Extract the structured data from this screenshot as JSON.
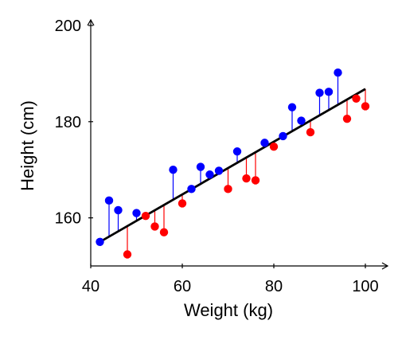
{
  "chart_data": {
    "type": "scatter",
    "title": "",
    "xlabel": "Weight (kg)",
    "ylabel": "Height (cm)",
    "xlim": [
      40,
      100
    ],
    "ylim": [
      150,
      200
    ],
    "x_ticks": [
      40,
      60,
      80,
      100
    ],
    "y_ticks": [
      160,
      180,
      200
    ],
    "grid": false,
    "fit_line": {
      "x": [
        42,
        100
      ],
      "y": [
        155.0,
        186.8
      ],
      "color": "#000000"
    },
    "colors": {
      "above": "#0000ff",
      "below": "#ff0000",
      "line": "#000000"
    },
    "series": [
      {
        "x": [
          44,
          46,
          50,
          58,
          64,
          66,
          68,
          72,
          78,
          84,
          86,
          90,
          92,
          94
        ],
        "y": [
          163.6,
          161.6,
          161.0,
          170.0,
          170.6,
          169.0,
          169.8,
          173.8,
          175.6,
          183.0,
          180.2,
          186.0,
          186.2,
          190.2
        ]
      },
      {
        "x": [
          42,
          48,
          52,
          54,
          56,
          60,
          62,
          70,
          74,
          76,
          80,
          82,
          88,
          96,
          98,
          100
        ],
        "y": [
          155.0,
          152.4,
          160.4,
          158.2,
          157.0,
          163.0,
          166.0,
          166.0,
          168.2,
          167.8,
          174.8,
          177.0,
          177.8,
          180.6,
          184.8,
          183.2
        ]
      }
    ]
  }
}
